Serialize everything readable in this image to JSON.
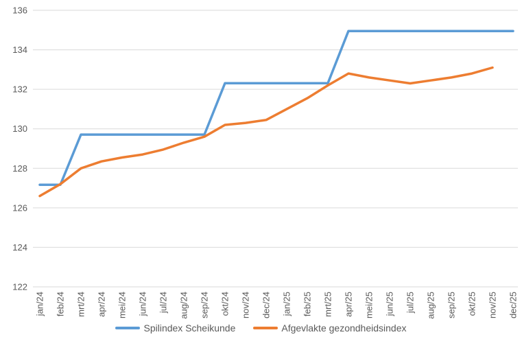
{
  "chart_data": {
    "type": "line",
    "title": "",
    "xlabel": "",
    "ylabel": "",
    "ylim": [
      122,
      136
    ],
    "y_ticks": [
      122,
      124,
      126,
      128,
      130,
      132,
      134,
      136
    ],
    "grid": true,
    "legend_position": "bottom-center",
    "background_color": "#FFFFFF",
    "gridline_color": "#D9D9D9",
    "axis_line_color": "#D9D9D9",
    "tick_label_color": "#595959",
    "legend_text_color": "#595959",
    "categories": [
      "jan/24",
      "feb/24",
      "mrt/24",
      "apr/24",
      "mei/24",
      "jun/24",
      "jul/24",
      "aug/24",
      "sep/24",
      "okt/24",
      "nov/24",
      "dec/24",
      "jan/25",
      "feb/25",
      "mrt/25",
      "apr/25",
      "mei/25",
      "jun/25",
      "jul/25",
      "aug/25",
      "sep/25",
      "okt/25",
      "nov/25",
      "dec/25"
    ],
    "series": [
      {
        "name": "Spilindex Scheikunde",
        "color": "#5B9BD5",
        "values": [
          127.17,
          127.17,
          129.71,
          129.71,
          129.71,
          129.71,
          129.71,
          129.71,
          129.71,
          132.31,
          132.31,
          132.31,
          132.31,
          132.31,
          132.31,
          134.95,
          134.95,
          134.95,
          134.95,
          134.95,
          134.95,
          134.95,
          134.95,
          134.95
        ]
      },
      {
        "name": "Afgevlakte gezondheidsindex",
        "color": "#ED7D31",
        "values": [
          126.6,
          127.2,
          128.0,
          128.35,
          128.55,
          128.7,
          128.95,
          129.3,
          129.6,
          130.2,
          130.3,
          130.45,
          131.0,
          131.55,
          132.2,
          132.8,
          132.6,
          132.45,
          132.3,
          132.45,
          132.6,
          132.8,
          133.1,
          null
        ]
      }
    ]
  }
}
